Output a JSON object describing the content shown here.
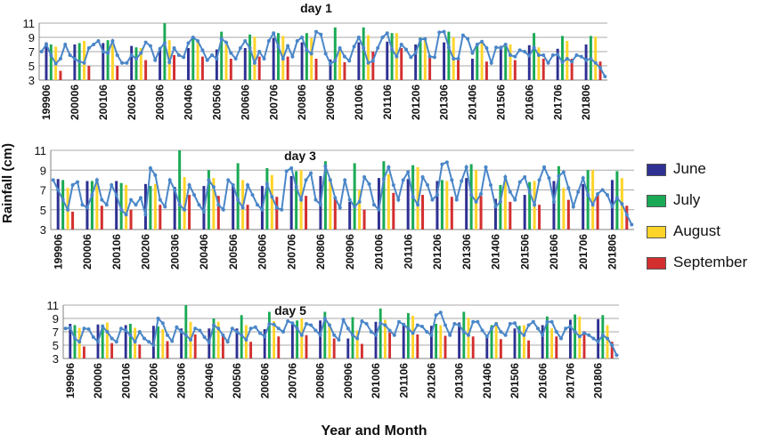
{
  "chart_data": [
    {
      "type": "bar",
      "title": "day 1",
      "ylim": [
        3,
        11
      ],
      "yticks": [
        3,
        5,
        7,
        9,
        11
      ],
      "grid": true,
      "x_tick_labels": [
        "199906",
        "200006",
        "200106",
        "200206",
        "200306",
        "200406",
        "200506",
        "200606",
        "200706",
        "200806",
        "200906",
        "201006",
        "201106",
        "201206",
        "201306",
        "201406",
        "201506",
        "201606",
        "201706",
        "201806"
      ],
      "series": [
        {
          "name": "June",
          "color": "#2e3192",
          "values": [
            8.3,
            8.0,
            8.2,
            7.8,
            7.4,
            7.5,
            7.3,
            7.5,
            8.9,
            8.3,
            5.9,
            8.3,
            8.4,
            8.0,
            8.3,
            6.0,
            7.8,
            7.9,
            7.4,
            8.0
          ]
        },
        {
          "name": "July",
          "color": "#1aaa55",
          "values": [
            8.0,
            8.2,
            8.6,
            7.6,
            11.0,
            8.9,
            9.8,
            9.4,
            9.6,
            9.6,
            10.4,
            10.4,
            9.6,
            9.0,
            9.8,
            8.0,
            8.0,
            9.6,
            9.2,
            9.2
          ]
        },
        {
          "name": "August",
          "color": "#ffd42a",
          "values": [
            7.7,
            8.5,
            8.0,
            7.5,
            8.6,
            8.5,
            8.0,
            9.1,
            9.2,
            8.9,
            7.3,
            9.3,
            9.6,
            8.6,
            9.0,
            8.5,
            8.0,
            7.6,
            8.5,
            9.1
          ]
        },
        {
          "name": "September",
          "color": "#d32f2f",
          "values": [
            4.3,
            5.0,
            5.0,
            5.8,
            6.5,
            6.3,
            6.0,
            6.3,
            6.3,
            6.0,
            5.5,
            7.0,
            7.5,
            6.5,
            6.0,
            5.6,
            5.8,
            6.0,
            6.0,
            5.6
          ]
        }
      ],
      "line_values": [
        7.0,
        8.0,
        6.5,
        5.3,
        6.0,
        8.0,
        6.5,
        6.0,
        5.6,
        5.4,
        7.5,
        8.0,
        8.5,
        7.0,
        6.8,
        8.5,
        6.5,
        5.4,
        5.4,
        6.5,
        6.0,
        6.8,
        8.3,
        7.8,
        5.8,
        7.4,
        8.2,
        5.5,
        7.5,
        6.5,
        6.2,
        8.2,
        9.0,
        8.5,
        7.2,
        5.8,
        6.5,
        6.0,
        8.8,
        8.3,
        6.8,
        6.0,
        7.5,
        8.5,
        7.5,
        5.4,
        7.0,
        6.0,
        8.5,
        9.6,
        7.7,
        6.0,
        7.8,
        6.3,
        8.5,
        9.0,
        7.2,
        6.7,
        9.8,
        9.4,
        6.7,
        5.3,
        5.7,
        7.5,
        6.3,
        5.7,
        7.7,
        9.0,
        7.5,
        5.4,
        5.7,
        7.5,
        9.0,
        9.6,
        7.3,
        6.3,
        8.0,
        7.3,
        6.2,
        6.8,
        8.7,
        8.8,
        6.3,
        6.2,
        9.7,
        9.8,
        7.6,
        6.0,
        6.0,
        9.3,
        8.8,
        6.8,
        8.0,
        8.4,
        7.5,
        5.4,
        7.6,
        7.5,
        8.0,
        6.5,
        6.3,
        7.2,
        7.0,
        6.4,
        7.6,
        6.5,
        6.5,
        5.4,
        6.5,
        6.6,
        5.5,
        6.0,
        5.6,
        6.5,
        6.3,
        5.8,
        6.0,
        5.4,
        4.7,
        3.5
      ]
    },
    {
      "type": "bar",
      "title": "day 3",
      "ylim": [
        3,
        11
      ],
      "yticks": [
        3,
        5,
        7,
        9,
        11
      ],
      "grid": true,
      "x_tick_labels": [
        "199906",
        "200006",
        "200106",
        "200206",
        "200306",
        "200406",
        "200506",
        "200606",
        "200706",
        "200806",
        "200906",
        "201006",
        "201106",
        "201206",
        "201306",
        "201406",
        "201506",
        "201606",
        "201706",
        "201806"
      ],
      "series": [
        {
          "name": "June",
          "color": "#2e3192",
          "values": [
            8.1,
            7.9,
            7.9,
            7.6,
            7.3,
            7.4,
            7.5,
            7.4,
            8.4,
            8.4,
            5.8,
            8.2,
            8.1,
            7.9,
            8.2,
            6.1,
            6.5,
            7.9,
            7.6,
            8.0
          ]
        },
        {
          "name": "July",
          "color": "#1aaa55",
          "values": [
            8.0,
            7.9,
            7.7,
            7.4,
            11.0,
            9.0,
            9.7,
            9.2,
            8.9,
            9.9,
            9.7,
            9.9,
            9.5,
            8.0,
            9.6,
            7.5,
            7.8,
            9.4,
            9.0,
            8.9
          ]
        },
        {
          "name": "August",
          "color": "#ffd42a",
          "values": [
            7.2,
            7.8,
            7.5,
            7.6,
            8.3,
            8.2,
            8.0,
            8.5,
            9.0,
            8.2,
            7.0,
            8.6,
            9.3,
            7.9,
            9.0,
            8.3,
            7.9,
            7.2,
            9.0,
            8.2
          ]
        },
        {
          "name": "September",
          "color": "#d32f2f",
          "values": [
            4.8,
            5.4,
            5.0,
            5.5,
            6.5,
            6.4,
            5.5,
            6.3,
            6.4,
            6.1,
            5.0,
            6.7,
            6.5,
            6.3,
            6.4,
            5.8,
            5.5,
            6.0,
            6.6,
            5.4
          ]
        }
      ],
      "line_values": [
        8.0,
        7.0,
        6.0,
        5.0,
        7.5,
        7.8,
        5.5,
        5.2,
        6.5,
        8.0,
        6.0,
        5.5,
        7.5,
        6.5,
        5.0,
        4.5,
        6.0,
        5.5,
        6.2,
        4.5,
        9.2,
        8.5,
        6.0,
        5.3,
        8.0,
        7.0,
        5.5,
        5.0,
        7.5,
        6.5,
        5.5,
        4.8,
        8.0,
        7.3,
        5.5,
        5.0,
        8.0,
        7.5,
        6.0,
        5.2,
        7.5,
        6.5,
        5.5,
        5.0,
        7.6,
        6.3,
        5.2,
        5.0,
        8.9,
        9.2,
        7.3,
        6.0,
        8.0,
        8.7,
        6.0,
        5.5,
        9.4,
        8.0,
        6.2,
        5.2,
        8.0,
        6.0,
        5.3,
        5.8,
        8.3,
        7.6,
        5.5,
        5.0,
        8.1,
        9.3,
        7.5,
        6.0,
        8.0,
        8.8,
        6.3,
        5.5,
        8.3,
        7.5,
        6.0,
        6.5,
        9.6,
        9.8,
        8.0,
        6.0,
        7.9,
        9.3,
        6.5,
        5.8,
        6.6,
        9.3,
        7.5,
        5.3,
        5.8,
        8.3,
        6.8,
        6.0,
        7.8,
        8.3,
        6.8,
        5.5,
        8.0,
        9.3,
        8.2,
        5.8,
        8.4,
        8.8,
        7.2,
        5.3,
        6.8,
        8.2,
        6.5,
        5.5,
        6.6,
        7.0,
        6.5,
        5.3,
        6.2,
        5.6,
        4.5,
        3.5
      ]
    },
    {
      "type": "bar",
      "title": "day 5",
      "ylim": [
        3,
        11
      ],
      "yticks": [
        3,
        5,
        7,
        9,
        11
      ],
      "grid": true,
      "x_tick_labels": [
        "199906",
        "200006",
        "200106",
        "200206",
        "200306",
        "200406",
        "200506",
        "200606",
        "200706",
        "200806",
        "200906",
        "201006",
        "201106",
        "201206",
        "201306",
        "201406",
        "201506",
        "201606",
        "201706",
        "201806"
      ],
      "series": [
        {
          "name": "June",
          "color": "#2e3192",
          "values": [
            8.2,
            8.1,
            8.0,
            7.9,
            7.5,
            7.5,
            7.5,
            7.4,
            8.5,
            8.7,
            6.0,
            8.5,
            8.3,
            7.9,
            8.4,
            6.3,
            7.5,
            8.0,
            8.8,
            8.9
          ]
        },
        {
          "name": "July",
          "color": "#1aaa55",
          "values": [
            8.0,
            8.1,
            8.2,
            7.8,
            11.0,
            9.0,
            9.5,
            10.0,
            8.7,
            10.0,
            9.2,
            10.5,
            9.8,
            8.2,
            10.0,
            8.0,
            7.9,
            9.3,
            9.6,
            9.5
          ]
        },
        {
          "name": "August",
          "color": "#ffd42a",
          "values": [
            7.6,
            8.4,
            7.6,
            7.4,
            8.5,
            8.5,
            8.0,
            8.6,
            9.0,
            8.3,
            7.2,
            8.8,
            9.4,
            8.0,
            9.1,
            8.5,
            8.0,
            7.5,
            9.3,
            8.0
          ]
        },
        {
          "name": "September",
          "color": "#d32f2f",
          "values": [
            4.8,
            5.3,
            5.1,
            5.6,
            6.6,
            6.5,
            5.5,
            6.3,
            6.5,
            6.0,
            5.2,
            6.9,
            6.6,
            6.4,
            6.3,
            5.9,
            5.7,
            6.3,
            7.1,
            5.5
          ]
        }
      ],
      "line_values": [
        7.5,
        7.6,
        6.0,
        5.5,
        7.5,
        7.4,
        6.2,
        5.5,
        7.8,
        7.0,
        6.0,
        5.5,
        7.5,
        7.2,
        6.5,
        5.5,
        7.0,
        6.0,
        5.5,
        5.0,
        9.0,
        8.3,
        6.5,
        5.6,
        7.7,
        7.0,
        6.5,
        5.8,
        7.5,
        7.2,
        6.2,
        5.4,
        8.0,
        7.5,
        6.5,
        5.5,
        7.5,
        7.0,
        6.5,
        5.8,
        7.5,
        7.7,
        6.8,
        6.3,
        8.2,
        8.1,
        7.5,
        7.0,
        8.6,
        8.3,
        7.5,
        6.5,
        8.2,
        8.0,
        7.2,
        6.5,
        9.0,
        8.0,
        6.5,
        5.8,
        8.8,
        7.5,
        6.5,
        6.0,
        8.6,
        8.2,
        7.0,
        6.5,
        8.3,
        8.0,
        7.2,
        6.5,
        8.5,
        8.1,
        7.5,
        6.8,
        8.0,
        7.8,
        7.0,
        6.5,
        9.5,
        9.9,
        8.0,
        6.5,
        8.2,
        8.0,
        7.0,
        6.5,
        8.5,
        8.5,
        7.2,
        6.3,
        7.5,
        8.2,
        7.0,
        6.5,
        8.2,
        8.3,
        7.0,
        6.5,
        8.0,
        8.5,
        7.5,
        6.5,
        8.5,
        8.5,
        7.0,
        6.0,
        7.5,
        7.8,
        7.0,
        6.3,
        6.8,
        6.5,
        6.0,
        5.5,
        6.5,
        6.0,
        5.0,
        3.5
      ]
    }
  ],
  "legend": [
    {
      "label": "June",
      "color": "#2e3192"
    },
    {
      "label": "July",
      "color": "#1aaa55"
    },
    {
      "label": "August",
      "color": "#ffd42a"
    },
    {
      "label": "September",
      "color": "#d32f2f"
    }
  ],
  "axis_titles": {
    "y": "Rainfall (cm)",
    "x": "Year and Month"
  },
  "line_color": "#4a86c8"
}
